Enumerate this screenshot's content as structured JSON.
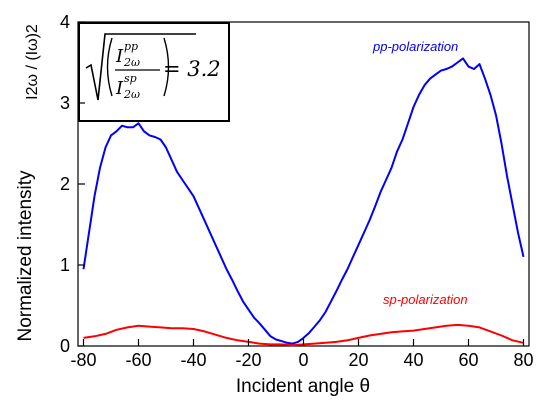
{
  "chart_data": {
    "type": "line",
    "xlabel": "Incident angle θ",
    "ylabel": "Normalized intensity",
    "ylabel_formula": "I2ω / (Iω)2",
    "x_ticks": [
      "-80",
      "-60",
      "-40",
      "-20",
      "0",
      "20",
      "40",
      "60",
      "80"
    ],
    "y_ticks": [
      "0",
      "1",
      "2",
      "3",
      "4"
    ],
    "xlim": [
      -82,
      82
    ],
    "ylim": [
      0,
      4
    ],
    "grid": false,
    "legend_placement": "series labels drawn beside curves",
    "annotation": {
      "lhs_top": "I",
      "lhs_top_sup": "pp",
      "lhs_top_sub": "2ω",
      "lhs_bottom": "I",
      "lhs_bottom_sup": "sp",
      "lhs_bottom_sub": "2ω",
      "rhs": "= 3.2"
    },
    "series": [
      {
        "name": "pp-polarization",
        "color": "#0000ff",
        "x": [
          -80,
          -78,
          -76,
          -74,
          -72,
          -70,
          -68,
          -66,
          -64,
          -62,
          -60,
          -58,
          -56,
          -54,
          -52,
          -50,
          -48,
          -46,
          -44,
          -42,
          -40,
          -38,
          -36,
          -34,
          -32,
          -30,
          -28,
          -26,
          -24,
          -22,
          -20,
          -18,
          -16,
          -14,
          -12,
          -10,
          -8,
          -6,
          -4,
          -2,
          0,
          2,
          4,
          6,
          8,
          10,
          12,
          14,
          16,
          18,
          20,
          22,
          24,
          26,
          28,
          30,
          32,
          34,
          36,
          38,
          40,
          42,
          44,
          46,
          48,
          50,
          52,
          54,
          56,
          58,
          60,
          62,
          64,
          66,
          68,
          70,
          72,
          74,
          76,
          78,
          80
        ],
        "values": [
          0.95,
          1.4,
          1.85,
          2.2,
          2.45,
          2.6,
          2.65,
          2.72,
          2.7,
          2.7,
          2.75,
          2.65,
          2.6,
          2.58,
          2.55,
          2.45,
          2.3,
          2.15,
          2.05,
          1.95,
          1.85,
          1.7,
          1.55,
          1.4,
          1.25,
          1.1,
          0.95,
          0.82,
          0.68,
          0.55,
          0.45,
          0.35,
          0.28,
          0.2,
          0.12,
          0.08,
          0.06,
          0.04,
          0.03,
          0.05,
          0.1,
          0.16,
          0.24,
          0.32,
          0.42,
          0.55,
          0.68,
          0.82,
          0.95,
          1.1,
          1.25,
          1.4,
          1.55,
          1.72,
          1.9,
          2.05,
          2.2,
          2.4,
          2.55,
          2.75,
          2.95,
          3.1,
          3.22,
          3.3,
          3.35,
          3.4,
          3.42,
          3.45,
          3.5,
          3.55,
          3.45,
          3.42,
          3.48,
          3.3,
          3.1,
          2.85,
          2.5,
          2.1,
          1.75,
          1.4,
          1.1
        ]
      },
      {
        "name": "sp-polarization",
        "color": "#ff0000",
        "x": [
          -80,
          -76,
          -72,
          -68,
          -64,
          -60,
          -56,
          -52,
          -48,
          -44,
          -40,
          -36,
          -32,
          -28,
          -24,
          -20,
          -16,
          -12,
          -8,
          -4,
          0,
          4,
          8,
          12,
          16,
          20,
          24,
          28,
          32,
          36,
          40,
          44,
          48,
          52,
          56,
          60,
          64,
          68,
          72,
          76,
          80
        ],
        "values": [
          0.1,
          0.12,
          0.15,
          0.2,
          0.23,
          0.25,
          0.24,
          0.23,
          0.22,
          0.22,
          0.21,
          0.18,
          0.14,
          0.1,
          0.07,
          0.05,
          0.03,
          0.02,
          0.02,
          0.01,
          0.02,
          0.03,
          0.04,
          0.05,
          0.07,
          0.1,
          0.13,
          0.15,
          0.17,
          0.18,
          0.19,
          0.21,
          0.23,
          0.25,
          0.26,
          0.25,
          0.23,
          0.18,
          0.13,
          0.07,
          0.04
        ]
      }
    ]
  }
}
